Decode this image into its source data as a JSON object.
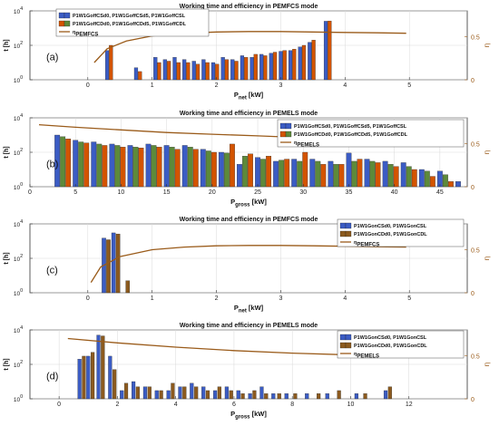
{
  "colors": {
    "blue": "#3b5cc4",
    "green": "#5d8a3a",
    "orange": "#d35400",
    "brown": "#8c5a1e",
    "curve": "#9a5b1a",
    "grid": "#d9d9d9",
    "axis": "#333333"
  },
  "chart_data": [
    {
      "type": "bar",
      "panel_label": "(a)",
      "title": "Working time and efficiency in PEMFCS mode",
      "xlabel": "P",
      "xlabel_sub": "net",
      "xlabel_unit": " [kW]",
      "ylabel": "t [h]",
      "y2label": "η",
      "ylog": true,
      "ylim": [
        1,
        10000
      ],
      "y_ticks": [
        "10^0",
        "10^2",
        "10^4"
      ],
      "xlim": [
        -0.9,
        5.9
      ],
      "x_ticks": [
        "0",
        "1",
        "2",
        "3",
        "4",
        "5"
      ],
      "x_tick_values": [
        0,
        1,
        2,
        3,
        4,
        5
      ],
      "y2lim": [
        0,
        0.8
      ],
      "y2_ticks": [
        "0",
        "0.5"
      ],
      "grid": true,
      "legend_position": "top-left",
      "legend": [
        {
          "name": "P1W1GoffCSd0, P1W1GoffCSd5, P1W1GoffCSL",
          "colors": [
            "#3b5cc4",
            "#3b5cc4"
          ]
        },
        {
          "name": "P1W1GoffCDd0, P1W1GoffCDd5, P1W1GoffCDL",
          "colors": [
            "#d35400",
            "#5d8a3a"
          ]
        },
        {
          "name": "η",
          "name_sub": "PEMFCS",
          "line": true
        }
      ],
      "bar_width": 0.055,
      "series": [
        {
          "name": "CS",
          "color": "#3b5cc4",
          "x": [
            0.3,
            0.75,
            1.05,
            1.2,
            1.35,
            1.5,
            1.65,
            1.8,
            1.95,
            2.1,
            2.25,
            2.4,
            2.55,
            2.7,
            2.85,
            3.0,
            3.15,
            3.3,
            3.45,
            3.7
          ],
          "values": [
            50,
            5,
            20,
            15,
            20,
            15,
            12,
            15,
            10,
            20,
            15,
            25,
            20,
            30,
            35,
            45,
            50,
            80,
            150,
            2500
          ]
        },
        {
          "name": "CD",
          "color": "#d35400",
          "x": [
            0.36,
            0.81,
            1.11,
            1.26,
            1.41,
            1.56,
            1.71,
            1.86,
            2.01,
            2.16,
            2.31,
            2.46,
            2.61,
            2.76,
            2.91,
            3.06,
            3.21,
            3.36,
            3.51,
            3.76
          ],
          "values": [
            100,
            3,
            10,
            12,
            10,
            10,
            8,
            10,
            8,
            15,
            12,
            20,
            30,
            25,
            40,
            50,
            60,
            100,
            200,
            2600
          ]
        }
      ],
      "curve": {
        "x": [
          0.1,
          0.3,
          0.6,
          1.0,
          1.5,
          2.0,
          2.5,
          3.0,
          3.5,
          4.0,
          4.5,
          4.95
        ],
        "values": [
          0.2,
          0.36,
          0.45,
          0.51,
          0.54,
          0.555,
          0.56,
          0.56,
          0.555,
          0.55,
          0.545,
          0.54
        ]
      }
    },
    {
      "type": "bar",
      "panel_label": "(b)",
      "title": "Working time and efficiency in PEMELS mode",
      "xlabel": "P",
      "xlabel_sub": "gross",
      "xlabel_unit": " [kW]",
      "ylabel": "t [h]",
      "y2label": "η",
      "ylog": true,
      "ylim": [
        1,
        10000
      ],
      "y_ticks": [
        "10^0",
        "10^2",
        "10^4"
      ],
      "xlim": [
        0,
        48
      ],
      "x_ticks": [
        "0",
        "5",
        "10",
        "15",
        "20",
        "25",
        "30",
        "35",
        "40",
        "45"
      ],
      "x_tick_values": [
        0,
        5,
        10,
        15,
        20,
        25,
        30,
        35,
        40,
        45
      ],
      "y2lim": [
        0,
        0.8
      ],
      "y2_ticks": [
        "0",
        "0.5"
      ],
      "grid": true,
      "legend_position": "top-right",
      "legend": [
        {
          "name": "P1W1GoffCSd0, P1W1GoffCSd5, P1W1GoffCSL",
          "colors": [
            "#3b5cc4",
            "#3b5cc4"
          ]
        },
        {
          "name": "P1W1GoffCDd0, P1W1GoffCDd5, P1W1GoffCDL",
          "colors": [
            "#d35400",
            "#5d8a3a"
          ]
        },
        {
          "name": "η",
          "name_sub": "PEMELS",
          "line": true
        }
      ],
      "bar_width": 0.55,
      "series": [
        {
          "name": "CS",
          "color": "#3b5cc4",
          "x": [
            3,
            5,
            7,
            9,
            11,
            13,
            15,
            17,
            19,
            21,
            23,
            25,
            27,
            29,
            31,
            33,
            35,
            37,
            39,
            41,
            43,
            45,
            47
          ],
          "values": [
            1000,
            500,
            400,
            300,
            250,
            300,
            250,
            250,
            150,
            100,
            20,
            50,
            30,
            40,
            40,
            30,
            90,
            40,
            30,
            25,
            10,
            8,
            2
          ]
        },
        {
          "name": "CD1",
          "color": "#5d8a3a",
          "x": [
            3.6,
            5.6,
            7.6,
            9.6,
            11.6,
            13.6,
            15.6,
            17.6,
            19.6,
            21.6,
            23.6,
            25.6,
            27.6,
            29.6,
            31.6,
            33.6,
            35.6,
            37.6,
            39.6,
            41.6,
            43.6,
            45.6
          ],
          "values": [
            800,
            400,
            300,
            250,
            200,
            250,
            200,
            200,
            120,
            90,
            60,
            40,
            35,
            30,
            30,
            20,
            30,
            30,
            20,
            15,
            8,
            5
          ]
        },
        {
          "name": "CD2",
          "color": "#d35400",
          "x": [
            4.2,
            6.2,
            8.2,
            10.2,
            12.2,
            14.2,
            16.2,
            18.2,
            20.2,
            22.2,
            24.2,
            26.2,
            28.2,
            30.2,
            32.2,
            34.2,
            36.2,
            38.2,
            40.2,
            42.2,
            44.2,
            46.2
          ],
          "values": [
            600,
            350,
            250,
            200,
            180,
            200,
            150,
            150,
            100,
            300,
            80,
            60,
            40,
            100,
            20,
            20,
            40,
            25,
            15,
            10,
            4,
            2
          ]
        }
      ],
      "curve": {
        "x": [
          1,
          5,
          10,
          15,
          20,
          25,
          30,
          35,
          40,
          45,
          47.5
        ],
        "values": [
          0.72,
          0.69,
          0.66,
          0.63,
          0.61,
          0.59,
          0.57,
          0.55,
          0.53,
          0.52,
          0.51
        ]
      }
    },
    {
      "type": "bar",
      "panel_label": "(c)",
      "title": "Working time and efficiency in PEMFCS mode",
      "xlabel": "P",
      "xlabel_sub": "net",
      "xlabel_unit": " [kW]",
      "ylabel": "t [h]",
      "y2label": "η",
      "ylog": true,
      "ylim": [
        1,
        10000
      ],
      "y_ticks": [
        "10^0",
        "10^2",
        "10^4"
      ],
      "xlim": [
        -0.9,
        5.9
      ],
      "x_ticks": [
        "0",
        "1",
        "2",
        "3",
        "4",
        "5"
      ],
      "x_tick_values": [
        0,
        1,
        2,
        3,
        4,
        5
      ],
      "y2lim": [
        0,
        0.8
      ],
      "y2_ticks": [
        "0",
        "0.5"
      ],
      "grid": true,
      "legend_position": "top-right",
      "legend": [
        {
          "name": "P1W1GonCSd0, P1W1GonCSL",
          "colors": [
            "#3b5cc4",
            "#3b5cc4"
          ]
        },
        {
          "name": "P1W1GonCDd0, P1W1GonCDL",
          "colors": [
            "#8c5a1e",
            "#8c5a1e"
          ]
        },
        {
          "name": "η",
          "name_sub": "PEMFCS",
          "line": true
        }
      ],
      "bar_width": 0.06,
      "series": [
        {
          "name": "CS",
          "color": "#3b5cc4",
          "x": [
            0.25,
            0.4
          ],
          "values": [
            1500,
            3000
          ]
        },
        {
          "name": "CD",
          "color": "#8c5a1e",
          "x": [
            0.32,
            0.47,
            0.62
          ],
          "values": [
            1200,
            2600,
            5
          ]
        }
      ],
      "curve": {
        "x": [
          0.05,
          0.2,
          0.5,
          1.0,
          1.5,
          2.0,
          2.5,
          3.0,
          3.5,
          4.0,
          4.5,
          4.95
        ],
        "values": [
          0.12,
          0.3,
          0.42,
          0.5,
          0.53,
          0.545,
          0.55,
          0.55,
          0.545,
          0.54,
          0.535,
          0.53
        ]
      }
    },
    {
      "type": "bar",
      "panel_label": "(d)",
      "title": "Working time and efficiency in PEMELS mode",
      "xlabel": "P",
      "xlabel_sub": "gross",
      "xlabel_unit": " [kW]",
      "ylabel": "t [h]",
      "y2label": "η",
      "ylog": true,
      "ylim": [
        1,
        10000
      ],
      "y_ticks": [
        "10^0",
        "10^2",
        "10^4"
      ],
      "xlim": [
        -1,
        14
      ],
      "x_ticks": [
        "0",
        "2",
        "4",
        "6",
        "8",
        "10",
        "12"
      ],
      "x_tick_values": [
        0,
        2,
        4,
        6,
        8,
        10,
        12
      ],
      "y2lim": [
        0,
        0.8
      ],
      "y2_ticks": [
        "0",
        "0.5"
      ],
      "grid": true,
      "legend_position": "top-right",
      "legend": [
        {
          "name": "P1W1GonCSd0, P1W1GonCSL",
          "colors": [
            "#3b5cc4",
            "#3b5cc4"
          ]
        },
        {
          "name": "P1W1GonCDd0, P1W1GonCDL",
          "colors": [
            "#8c5a1e",
            "#8c5a1e"
          ]
        },
        {
          "name": "η",
          "name_sub": "PEMELS",
          "line": true
        }
      ],
      "bar_width": 0.12,
      "series": [
        {
          "name": "CS",
          "color": "#3b5cc4",
          "x": [
            0.7,
            1.0,
            1.35,
            1.75,
            2.15,
            2.55,
            2.95,
            3.35,
            3.75,
            4.15,
            4.55,
            4.95,
            5.35,
            5.75,
            6.15,
            6.55,
            6.95,
            7.35,
            7.8,
            8.5,
            9.2,
            10.2,
            11.2
          ],
          "values": [
            200,
            300,
            5000,
            300,
            3,
            10,
            5,
            3,
            3,
            5,
            8,
            5,
            3,
            5,
            3,
            2,
            5,
            2,
            2,
            2,
            2,
            2,
            3
          ]
        },
        {
          "name": "CD",
          "color": "#8c5a1e",
          "x": [
            0.85,
            1.15,
            1.5,
            1.9,
            2.3,
            2.7,
            3.1,
            3.5,
            3.9,
            4.3,
            4.7,
            5.1,
            5.5,
            5.9,
            6.3,
            6.7,
            7.1,
            7.55,
            8.1,
            8.9,
            9.6,
            10.5,
            11.35
          ],
          "values": [
            300,
            500,
            4500,
            50,
            8,
            5,
            5,
            3,
            8,
            5,
            5,
            3,
            5,
            3,
            2,
            3,
            2,
            2,
            2,
            2,
            3,
            2,
            5
          ]
        }
      ],
      "curve": {
        "x": [
          0.3,
          2,
          4,
          6,
          8,
          10,
          12.8
        ],
        "values": [
          0.7,
          0.65,
          0.6,
          0.56,
          0.53,
          0.51,
          0.49
        ]
      }
    }
  ]
}
